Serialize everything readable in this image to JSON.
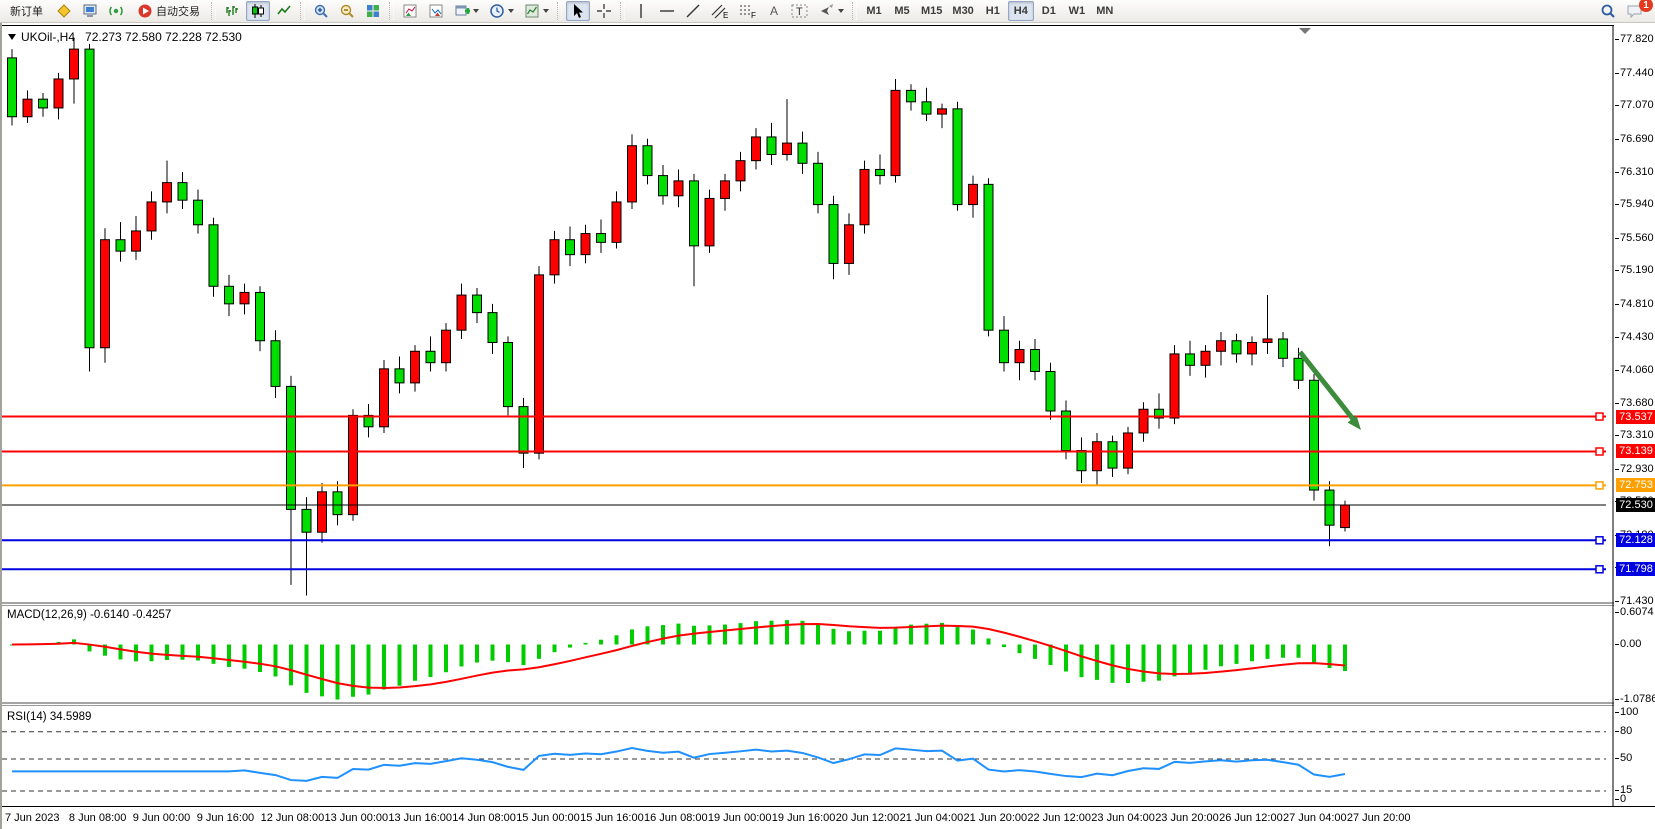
{
  "toolbar": {
    "new_order_label": "新订单",
    "auto_trading_label": "自动交易",
    "timeframes": [
      "M1",
      "M5",
      "M15",
      "M30",
      "H1",
      "H4",
      "D1",
      "W1",
      "MN"
    ],
    "active_timeframe": "H4",
    "channel_letter": "E",
    "fibo_letter": "F",
    "text_tool_label": "A",
    "label_tool_label": "T",
    "chat_badge_count": "1"
  },
  "chart": {
    "symbol_title": "UKOil-,H4",
    "ohlc_text": "72.273 72.580 72.228 72.530"
  },
  "price_axis_ticks": [
    "77.820",
    "77.440",
    "77.070",
    "76.690",
    "76.310",
    "75.940",
    "75.560",
    "75.190",
    "74.810",
    "74.430",
    "74.060",
    "73.680",
    "73.310",
    "72.930",
    "72.560",
    "72.180",
    "71.810",
    "71.430"
  ],
  "level_badges": [
    {
      "label": "73.537",
      "price": 73.537,
      "color": "#FF0000",
      "thick": 2,
      "handle": true
    },
    {
      "label": "73.139",
      "price": 73.139,
      "color": "#FF0000",
      "thick": 2,
      "handle": true
    },
    {
      "label": "72.753",
      "price": 72.753,
      "color": "#FFA000",
      "thick": 2,
      "handle": true
    },
    {
      "label": "72.530",
      "price": 72.53,
      "color": "#000000",
      "thick": 1,
      "handle": false
    },
    {
      "label": "72.128",
      "price": 72.128,
      "color": "#0000E0",
      "thick": 2,
      "handle": true
    },
    {
      "label": "71.798",
      "price": 71.798,
      "color": "#0000E0",
      "thick": 2,
      "handle": true
    }
  ],
  "macd_panel": {
    "label": "MACD(12,26,9)",
    "values": "-0.6140 -0.4257",
    "axis": [
      {
        "label": "0.6074",
        "value": 0.6074
      },
      {
        "label": "0.00",
        "value": 0
      },
      {
        "label": "-1.0786",
        "value": -1.0786
      }
    ]
  },
  "rsi_panel": {
    "label": "RSI(14)",
    "value": "34.5989",
    "axis": [
      {
        "label": "100",
        "value": 100
      },
      {
        "label": "80",
        "value": 80
      },
      {
        "label": "50",
        "value": 50
      },
      {
        "label": "15",
        "value": 15
      },
      {
        "label": "0",
        "value": 0
      }
    ],
    "dashed_levels": [
      80,
      50,
      15
    ]
  },
  "date_labels": [
    "7 Jun 2023",
    "8 Jun 08:00",
    "9 Jun 00:00",
    "9 Jun 16:00",
    "12 Jun 08:00",
    "13 Jun 00:00",
    "13 Jun 16:00",
    "14 Jun 08:00",
    "15 Jun 00:00",
    "15 Jun 16:00",
    "16 Jun 08:00",
    "19 Jun 00:00",
    "19 Jun 16:00",
    "20 Jun 12:00",
    "21 Jun 04:00",
    "21 Jun 20:00",
    "22 Jun 12:00",
    "23 Jun 04:00",
    "23 Jun 20:00",
    "26 Jun 12:00",
    "27 Jun 04:00",
    "27 Jun 20:00"
  ],
  "chart_data": {
    "type": "candlestick",
    "title": "UKOil-,H4",
    "ylim": [
      71.41,
      77.98
    ],
    "grid": false,
    "colors": {
      "bull": "#FF0000",
      "bear": "#00DE00",
      "outline": "#000000",
      "macd_hist": "#00CC00",
      "macd_signal": "#FF0000",
      "rsi_line": "#1E90FF",
      "arrow": "#3C8C3C"
    },
    "ohlc": [
      [
        77.62,
        77.72,
        76.85,
        76.95
      ],
      [
        76.95,
        77.25,
        76.88,
        77.15
      ],
      [
        77.15,
        77.22,
        76.95,
        77.05
      ],
      [
        77.05,
        77.45,
        76.92,
        77.38
      ],
      [
        77.38,
        77.85,
        77.1,
        77.72
      ],
      [
        77.72,
        77.78,
        74.05,
        74.32
      ],
      [
        74.32,
        75.68,
        74.15,
        75.55
      ],
      [
        75.55,
        75.75,
        75.3,
        75.42
      ],
      [
        75.42,
        75.82,
        75.32,
        75.65
      ],
      [
        75.65,
        76.1,
        75.55,
        75.98
      ],
      [
        75.98,
        76.45,
        75.85,
        76.2
      ],
      [
        76.2,
        76.32,
        75.9,
        76.0
      ],
      [
        76.0,
        76.12,
        75.62,
        75.72
      ],
      [
        75.72,
        75.8,
        74.9,
        75.02
      ],
      [
        75.02,
        75.15,
        74.68,
        74.82
      ],
      [
        74.82,
        75.05,
        74.7,
        74.95
      ],
      [
        74.95,
        75.02,
        74.28,
        74.4
      ],
      [
        74.4,
        74.52,
        73.75,
        73.88
      ],
      [
        73.88,
        74.0,
        71.62,
        72.48
      ],
      [
        72.48,
        72.62,
        71.5,
        72.22
      ],
      [
        72.22,
        72.78,
        72.1,
        72.68
      ],
      [
        72.68,
        72.8,
        72.3,
        72.42
      ],
      [
        72.42,
        73.62,
        72.35,
        73.55
      ],
      [
        73.55,
        73.68,
        73.3,
        73.42
      ],
      [
        73.42,
        74.18,
        73.35,
        74.08
      ],
      [
        74.08,
        74.22,
        73.8,
        73.92
      ],
      [
        73.92,
        74.35,
        73.82,
        74.28
      ],
      [
        74.28,
        74.45,
        74.05,
        74.15
      ],
      [
        74.15,
        74.6,
        74.05,
        74.52
      ],
      [
        74.52,
        75.05,
        74.42,
        74.92
      ],
      [
        74.92,
        75.0,
        74.6,
        74.72
      ],
      [
        74.72,
        74.82,
        74.25,
        74.38
      ],
      [
        74.38,
        74.45,
        73.55,
        73.65
      ],
      [
        73.65,
        73.75,
        72.95,
        73.12
      ],
      [
        73.12,
        75.25,
        73.05,
        75.15
      ],
      [
        75.15,
        75.65,
        75.05,
        75.55
      ],
      [
        75.55,
        75.7,
        75.25,
        75.38
      ],
      [
        75.38,
        75.72,
        75.28,
        75.62
      ],
      [
        75.62,
        75.78,
        75.4,
        75.52
      ],
      [
        75.52,
        76.1,
        75.45,
        75.98
      ],
      [
        75.98,
        76.75,
        75.9,
        76.62
      ],
      [
        76.62,
        76.7,
        76.18,
        76.28
      ],
      [
        76.28,
        76.4,
        75.95,
        76.05
      ],
      [
        76.05,
        76.35,
        75.92,
        76.22
      ],
      [
        76.22,
        76.3,
        75.02,
        75.48
      ],
      [
        75.48,
        76.12,
        75.4,
        76.02
      ],
      [
        76.02,
        76.3,
        75.88,
        76.22
      ],
      [
        76.22,
        76.55,
        76.1,
        76.45
      ],
      [
        76.45,
        76.82,
        76.35,
        76.72
      ],
      [
        76.72,
        76.88,
        76.4,
        76.52
      ],
      [
        76.52,
        77.15,
        76.45,
        76.65
      ],
      [
        76.65,
        76.78,
        76.3,
        76.42
      ],
      [
        76.42,
        76.55,
        75.85,
        75.95
      ],
      [
        75.95,
        76.05,
        75.1,
        75.28
      ],
      [
        75.28,
        75.85,
        75.15,
        75.72
      ],
      [
        75.72,
        76.45,
        75.62,
        76.35
      ],
      [
        76.35,
        76.52,
        76.18,
        76.28
      ],
      [
        76.28,
        77.38,
        76.2,
        77.25
      ],
      [
        77.25,
        77.32,
        77.02,
        77.12
      ],
      [
        77.12,
        77.28,
        76.9,
        76.98
      ],
      [
        76.98,
        77.1,
        76.82,
        77.04
      ],
      [
        77.04,
        77.12,
        75.88,
        75.95
      ],
      [
        75.95,
        76.28,
        75.8,
        76.18
      ],
      [
        76.18,
        76.25,
        74.45,
        74.52
      ],
      [
        74.52,
        74.68,
        74.05,
        74.15
      ],
      [
        74.15,
        74.4,
        73.95,
        74.3
      ],
      [
        74.3,
        74.42,
        73.95,
        74.05
      ],
      [
        74.05,
        74.15,
        73.5,
        73.6
      ],
      [
        73.6,
        73.72,
        73.05,
        73.15
      ],
      [
        73.15,
        73.3,
        72.78,
        72.92
      ],
      [
        72.92,
        73.35,
        72.75,
        73.25
      ],
      [
        73.25,
        73.32,
        72.85,
        72.95
      ],
      [
        72.95,
        73.42,
        72.88,
        73.35
      ],
      [
        73.35,
        73.7,
        73.25,
        73.62
      ],
      [
        73.62,
        73.8,
        73.4,
        73.52
      ],
      [
        73.52,
        74.35,
        73.45,
        74.25
      ],
      [
        74.25,
        74.4,
        74.0,
        74.12
      ],
      [
        74.12,
        74.35,
        73.98,
        74.28
      ],
      [
        74.28,
        74.5,
        74.12,
        74.4
      ],
      [
        74.4,
        74.48,
        74.15,
        74.25
      ],
      [
        74.25,
        74.45,
        74.12,
        74.38
      ],
      [
        74.38,
        74.92,
        74.25,
        74.42
      ],
      [
        74.42,
        74.5,
        74.1,
        74.2
      ],
      [
        74.2,
        74.32,
        73.85,
        73.95
      ],
      [
        73.95,
        74.02,
        72.58,
        72.7
      ],
      [
        72.7,
        72.8,
        72.06,
        72.3
      ],
      [
        72.273,
        72.58,
        72.228,
        72.53
      ]
    ],
    "indicators": [
      {
        "name": "MACD",
        "params": [
          12,
          26,
          9
        ],
        "current": "-0.6140 -0.4257",
        "axis_range": [
          -1.0786,
          0.6074
        ]
      },
      {
        "name": "RSI",
        "params": [
          14
        ],
        "current": "34.5989",
        "levels": [
          80,
          50,
          15
        ]
      }
    ],
    "horizontal_lines": [
      73.537,
      73.139,
      72.753,
      72.53,
      72.128,
      71.798
    ],
    "annotations": [
      {
        "type": "arrow",
        "direction": "down-right",
        "color": "#3C8C3C"
      }
    ]
  }
}
